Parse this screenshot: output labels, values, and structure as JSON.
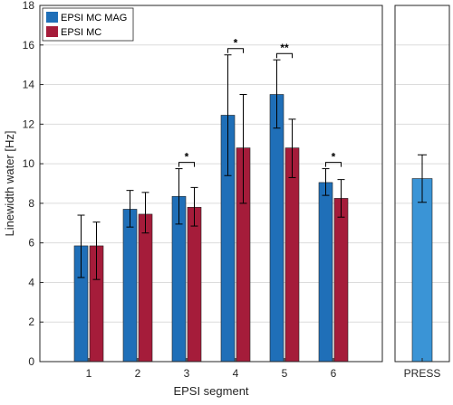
{
  "chart_data": [
    {
      "type": "bar",
      "categories": [
        "1",
        "2",
        "3",
        "4",
        "5",
        "6"
      ],
      "series": [
        {
          "name": "EPSI MC MAG",
          "color": "#1f6fb8",
          "values": [
            5.85,
            7.7,
            8.35,
            12.45,
            13.5,
            9.05
          ],
          "err_low": [
            4.25,
            6.8,
            6.95,
            9.4,
            11.8,
            8.4
          ],
          "err_high": [
            7.4,
            8.65,
            9.75,
            15.5,
            15.25,
            9.75
          ]
        },
        {
          "name": "EPSI MC",
          "color": "#a51c3a",
          "values": [
            5.85,
            7.45,
            7.8,
            10.8,
            10.8,
            8.25
          ],
          "err_low": [
            4.15,
            6.5,
            6.85,
            8.0,
            9.3,
            7.3
          ],
          "err_high": [
            7.05,
            8.55,
            8.8,
            13.5,
            12.25,
            9.2
          ]
        }
      ],
      "significance": [
        {
          "category": "3",
          "label": "*"
        },
        {
          "category": "4",
          "label": "*"
        },
        {
          "category": "5",
          "label": "**"
        },
        {
          "category": "6",
          "label": "*"
        }
      ],
      "xlabel": "EPSI segment",
      "ylabel": "Linewidth water [Hz]",
      "ylim": [
        0,
        18
      ],
      "yticks": [
        "0",
        "2",
        "4",
        "6",
        "8",
        "10",
        "12",
        "14",
        "16",
        "18"
      ],
      "grid": "horizontal",
      "legend": "top-left"
    },
    {
      "type": "bar",
      "categories": [
        "PRESS"
      ],
      "series": [
        {
          "color": "#3a94d6",
          "values": [
            9.25
          ],
          "err_low": [
            8.05
          ],
          "err_high": [
            10.45
          ]
        }
      ],
      "ylim": [
        0,
        18
      ],
      "grid": "horizontal"
    }
  ]
}
